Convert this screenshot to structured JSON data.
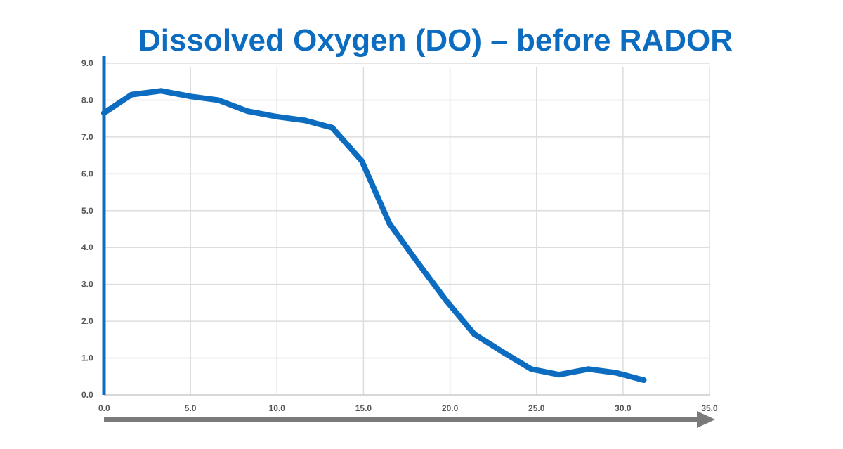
{
  "chart_data": {
    "type": "line",
    "title": "Dissolved Oxygen (DO) – before RADOR",
    "xlabel": "",
    "ylabel": "",
    "xlim": [
      0,
      35
    ],
    "ylim": [
      0,
      9
    ],
    "grid": true,
    "x_ticks": [
      "0.0",
      "5.0",
      "10.0",
      "15.0",
      "20.0",
      "25.0",
      "30.0",
      "35.0"
    ],
    "y_ticks": [
      "0.0",
      "1.0",
      "2.0",
      "3.0",
      "4.0",
      "5.0",
      "6.0",
      "7.0",
      "8.0",
      "9.0"
    ],
    "series": [
      {
        "name": "DO",
        "x": [
          0.0,
          1.6,
          3.3,
          5.0,
          6.6,
          8.3,
          10.0,
          11.6,
          13.2,
          14.9,
          16.5,
          18.2,
          19.8,
          21.4,
          23.1,
          24.7,
          26.3,
          28.0,
          29.6,
          31.2
        ],
        "y": [
          7.65,
          8.15,
          8.25,
          8.1,
          8.0,
          7.7,
          7.55,
          7.45,
          7.25,
          6.35,
          4.65,
          3.55,
          2.55,
          1.65,
          1.15,
          0.7,
          0.55,
          0.7,
          0.6,
          0.4
        ]
      }
    ],
    "colors": {
      "title": "#0c6cbf",
      "line": "#0c6cbf",
      "y_axis": "#0c6cbf",
      "grid": "#dddddd",
      "arrow": "#7a7a7a"
    }
  }
}
